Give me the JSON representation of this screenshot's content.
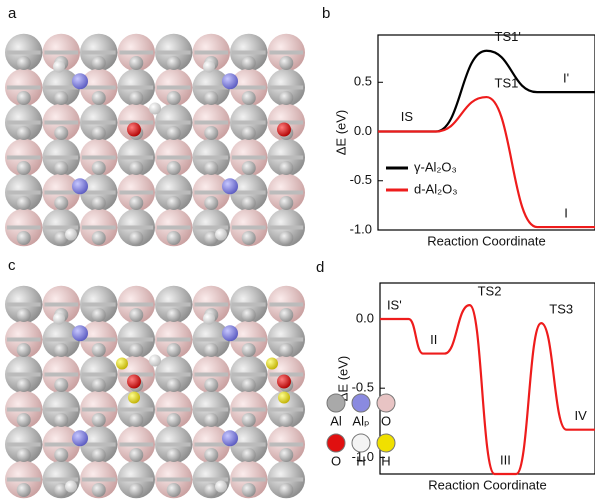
{
  "panels": [
    "a",
    "b",
    "c",
    "d"
  ],
  "chart_data": [
    {
      "type": "energy-profile",
      "x_label": "Reaction Coordinate",
      "y_label": "ΔE (eV)",
      "start_label": "IS",
      "ylim": [
        -1.0,
        0.98
      ],
      "yticks": [
        {
          "value": -1.0,
          "label": "-1.0"
        },
        -0.5,
        {
          "value": 0,
          "label": "0.0"
        },
        0.5
      ],
      "legend": "lower-left",
      "series": [
        {
          "name": "γ-Al₂O₃",
          "color": "#000000",
          "values": [
            0,
            0.82,
            0.4
          ],
          "point_labels": [
            null,
            "TS1'",
            "I'"
          ]
        },
        {
          "name": "d-Al₂O₃",
          "color": "#ee1c1c",
          "values": [
            0,
            0.35,
            -0.97
          ],
          "point_labels": [
            null,
            "TS1",
            "I"
          ]
        }
      ]
    },
    {
      "type": "energy-profile",
      "x_label": "Reaction Coordinate",
      "y_label": "ΔE (eV)",
      "ylim": [
        -1.12,
        0.26
      ],
      "yticks": [
        {
          "value": -1.0,
          "label": "-1.0"
        },
        -0.5,
        {
          "value": 0,
          "label": "0.0"
        }
      ],
      "series": [
        {
          "color": "#ee1c1c",
          "values": [
            0,
            -0.25,
            0.1,
            -1.12,
            -0.03,
            -0.8
          ],
          "point_labels": [
            "IS'",
            "II",
            "TS2",
            "III",
            "TS3",
            "IV"
          ]
        }
      ],
      "atom_legend": [
        {
          "label": "Al",
          "color": "#a9a9a9"
        },
        {
          "label": "Alₚ",
          "color": "#8a8ae0"
        },
        {
          "label": "O",
          "color": "#e8c4c4"
        },
        {
          "label": "O",
          "color": "#e01010"
        },
        {
          "label": "H",
          "color": "#f4f4f4"
        },
        {
          "label": "H",
          "color": "#f0e000"
        }
      ]
    }
  ]
}
